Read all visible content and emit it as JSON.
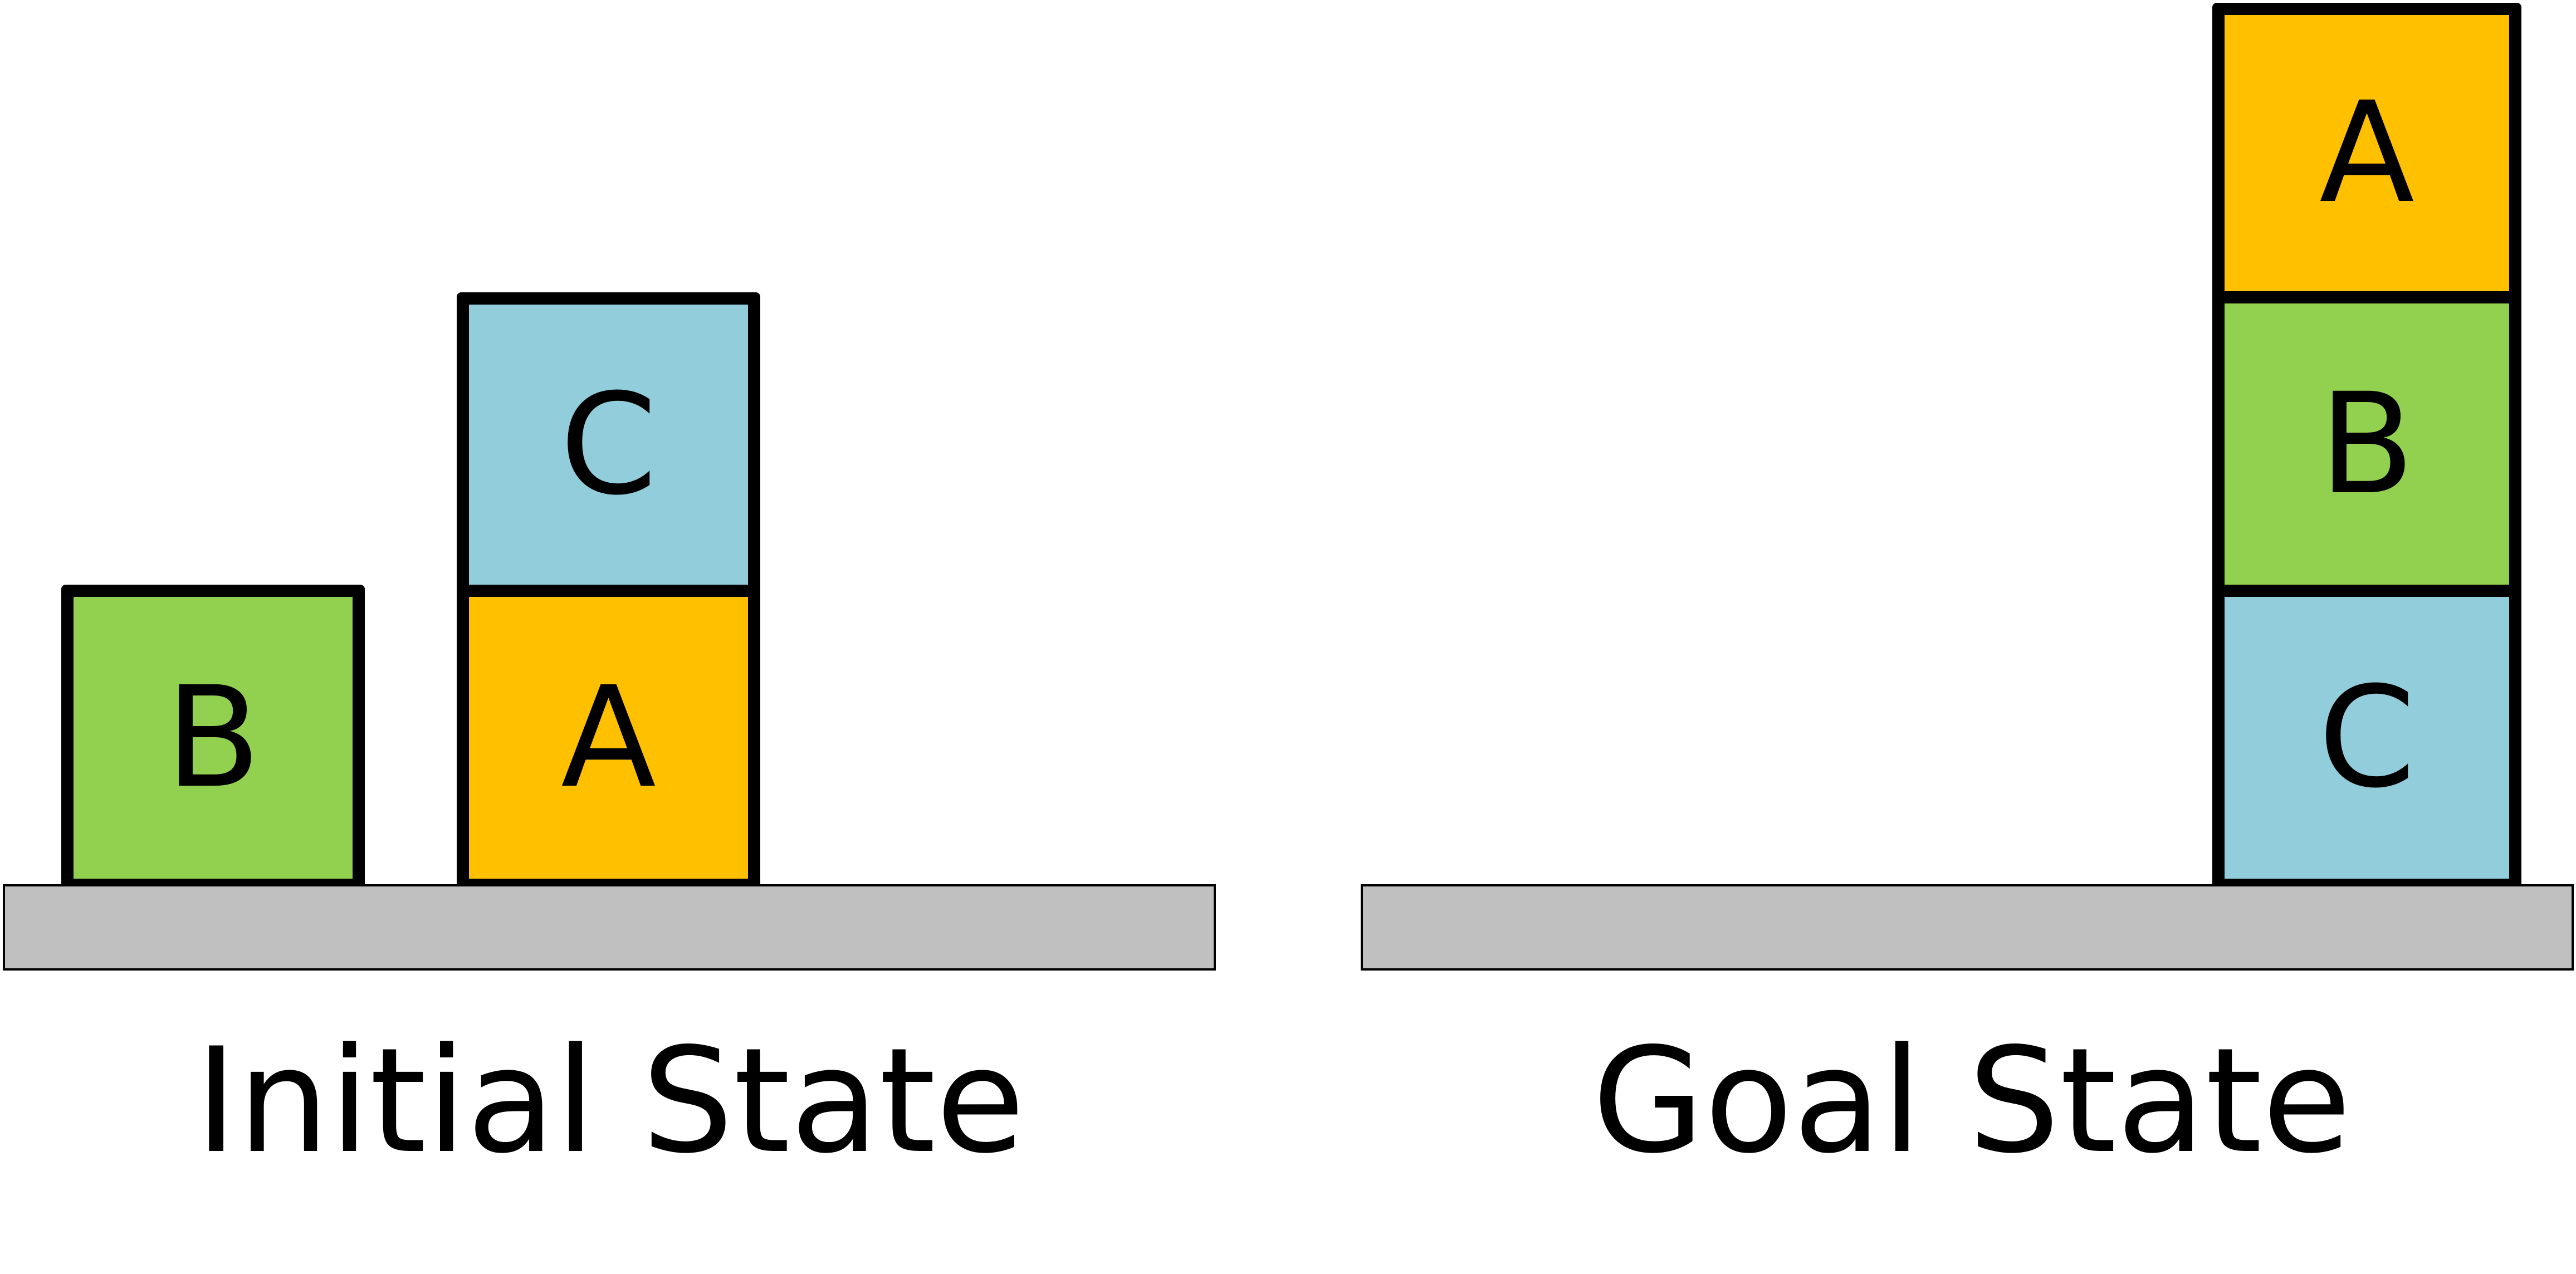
{
  "colors": {
    "table": "#c0c0c0",
    "block_a": "#ffc000",
    "block_b": "#92d050",
    "block_c": "#92cddc",
    "border": "#000000"
  },
  "initial_state": {
    "label": "Initial State",
    "stacks": [
      {
        "blocks_bottom_to_top": [
          "B"
        ]
      },
      {
        "blocks_bottom_to_top": [
          "A",
          "C"
        ]
      }
    ]
  },
  "goal_state": {
    "label": "Goal State",
    "stacks": [
      {
        "blocks_bottom_to_top": [
          "C",
          "B",
          "A"
        ]
      }
    ]
  }
}
